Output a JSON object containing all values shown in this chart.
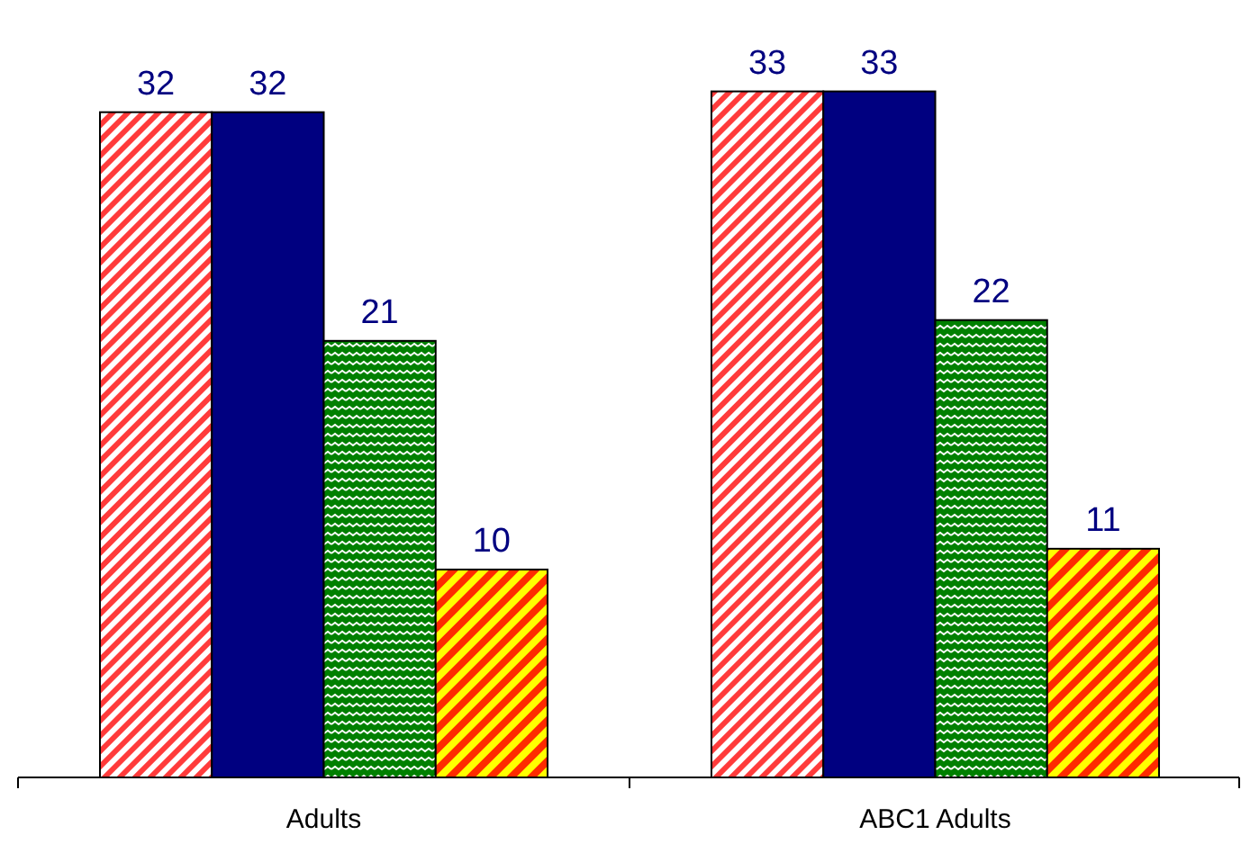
{
  "chart_data": {
    "type": "bar",
    "categories": [
      "Adults",
      "ABC1 Adults"
    ],
    "series": [
      {
        "color": "#ff3b3b",
        "values": [
          32,
          33
        ]
      },
      {
        "color": "#000080",
        "values": [
          32,
          33
        ]
      },
      {
        "color": "#008000",
        "values": [
          21,
          22
        ]
      },
      {
        "color": "#ffff00",
        "values": [
          10,
          11
        ]
      }
    ],
    "data_labels": true,
    "grid": false
  }
}
